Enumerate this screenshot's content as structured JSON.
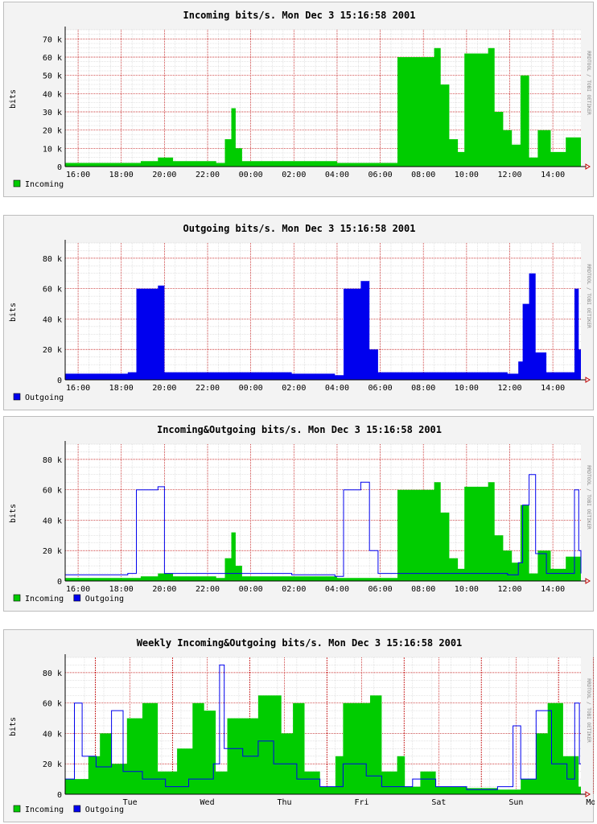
{
  "chart_data": [
    {
      "type": "area",
      "title": "Incoming bits/s. Mon Dec  3 15:16:58 2001",
      "ylabel": "bits",
      "ylim": [
        0,
        75000
      ],
      "yticks": [
        0,
        10000,
        20000,
        30000,
        40000,
        50000,
        60000,
        70000
      ],
      "ytick_labels": [
        "0",
        "10 k",
        "20 k",
        "30 k",
        "40 k",
        "50 k",
        "60 k",
        "70 k"
      ],
      "x_start": 15.4,
      "x_end": 15.3,
      "xtick_labels": [
        "16:00",
        "18:00",
        "20:00",
        "22:00",
        "00:00",
        "02:00",
        "04:00",
        "06:00",
        "08:00",
        "10:00",
        "12:00",
        "14:00"
      ],
      "credit": "RRDTOOL / TOBI OETIKER",
      "grid": true,
      "legend_position": "bottom-left",
      "series": [
        {
          "name": "Incoming",
          "color": "#00cc00",
          "style": "area",
          "points": [
            [
              0,
              2000
            ],
            [
              3.5,
              3000
            ],
            [
              4.3,
              5000
            ],
            [
              5,
              3000
            ],
            [
              7,
              2000
            ],
            [
              7.4,
              15000
            ],
            [
              7.7,
              32000
            ],
            [
              7.9,
              10000
            ],
            [
              8.2,
              3000
            ],
            [
              12.6,
              2000
            ],
            [
              14.9,
              2000
            ],
            [
              15.4,
              60000
            ],
            [
              17.1,
              65000
            ],
            [
              17.4,
              45000
            ],
            [
              17.8,
              15000
            ],
            [
              18.2,
              8000
            ],
            [
              18.5,
              62000
            ],
            [
              19.6,
              65000
            ],
            [
              19.9,
              30000
            ],
            [
              20.3,
              20000
            ],
            [
              20.7,
              12000
            ],
            [
              21.1,
              50000
            ],
            [
              21.5,
              5000
            ],
            [
              21.9,
              20000
            ],
            [
              22.5,
              8000
            ],
            [
              23.2,
              16000
            ],
            [
              23.9,
              5000
            ]
          ]
        }
      ]
    },
    {
      "type": "area",
      "title": "Outgoing bits/s. Mon Dec  3 15:16:58 2001",
      "ylabel": "bits",
      "ylim": [
        0,
        90000
      ],
      "yticks": [
        0,
        20000,
        40000,
        60000,
        80000
      ],
      "ytick_labels": [
        "0",
        "20 k",
        "40 k",
        "60 k",
        "80 k"
      ],
      "x_start": 15.4,
      "x_end": 15.3,
      "xtick_labels": [
        "16:00",
        "18:00",
        "20:00",
        "22:00",
        "00:00",
        "02:00",
        "04:00",
        "06:00",
        "08:00",
        "10:00",
        "12:00",
        "14:00"
      ],
      "credit": "RRDTOOL / TOBI OETIKER",
      "grid": true,
      "legend_position": "bottom-left",
      "series": [
        {
          "name": "Outgoing",
          "color": "#0000ee",
          "style": "area",
          "points": [
            [
              0,
              4000
            ],
            [
              2.9,
              5000
            ],
            [
              3.3,
              60000
            ],
            [
              4.3,
              62000
            ],
            [
              4.6,
              5000
            ],
            [
              7,
              5000
            ],
            [
              10.5,
              4000
            ],
            [
              12.5,
              3000
            ],
            [
              12.9,
              60000
            ],
            [
              13.7,
              65000
            ],
            [
              14.1,
              20000
            ],
            [
              14.5,
              5000
            ],
            [
              19.8,
              5000
            ],
            [
              20.5,
              4000
            ],
            [
              21,
              12000
            ],
            [
              21.2,
              50000
            ],
            [
              21.5,
              70000
            ],
            [
              21.8,
              18000
            ],
            [
              22.3,
              5000
            ],
            [
              23.4,
              5000
            ],
            [
              23.6,
              60000
            ],
            [
              23.8,
              20000
            ],
            [
              23.9,
              5000
            ]
          ]
        }
      ]
    },
    {
      "type": "area",
      "title": "Incoming&Outgoing bits/s. Mon Dec  3 15:16:58 2001",
      "ylabel": "bits",
      "ylim": [
        0,
        90000
      ],
      "yticks": [
        0,
        20000,
        40000,
        60000,
        80000
      ],
      "ytick_labels": [
        "0",
        "20 k",
        "40 k",
        "60 k",
        "80 k"
      ],
      "x_start": 15.4,
      "x_end": 15.3,
      "xtick_labels": [
        "16:00",
        "18:00",
        "20:00",
        "22:00",
        "00:00",
        "02:00",
        "04:00",
        "06:00",
        "08:00",
        "10:00",
        "12:00",
        "14:00"
      ],
      "credit": "RRDTOOL / TOBI OETIKER",
      "grid": true,
      "legend_position": "bottom-left",
      "series": [
        {
          "name": "Incoming",
          "color": "#00cc00",
          "style": "area",
          "points": [
            [
              0,
              2000
            ],
            [
              3.5,
              3000
            ],
            [
              4.3,
              5000
            ],
            [
              5,
              3000
            ],
            [
              7,
              2000
            ],
            [
              7.4,
              15000
            ],
            [
              7.7,
              32000
            ],
            [
              7.9,
              10000
            ],
            [
              8.2,
              3000
            ],
            [
              12.6,
              2000
            ],
            [
              14.9,
              2000
            ],
            [
              15.4,
              60000
            ],
            [
              17.1,
              65000
            ],
            [
              17.4,
              45000
            ],
            [
              17.8,
              15000
            ],
            [
              18.2,
              8000
            ],
            [
              18.5,
              62000
            ],
            [
              19.6,
              65000
            ],
            [
              19.9,
              30000
            ],
            [
              20.3,
              20000
            ],
            [
              20.7,
              12000
            ],
            [
              21.1,
              50000
            ],
            [
              21.5,
              5000
            ],
            [
              21.9,
              20000
            ],
            [
              22.5,
              8000
            ],
            [
              23.2,
              16000
            ],
            [
              23.9,
              5000
            ]
          ]
        },
        {
          "name": "Outgoing",
          "color": "#0000ee",
          "style": "line",
          "points": [
            [
              0,
              4000
            ],
            [
              2.9,
              5000
            ],
            [
              3.3,
              60000
            ],
            [
              4.3,
              62000
            ],
            [
              4.6,
              5000
            ],
            [
              7,
              5000
            ],
            [
              10.5,
              4000
            ],
            [
              12.5,
              3000
            ],
            [
              12.9,
              60000
            ],
            [
              13.7,
              65000
            ],
            [
              14.1,
              20000
            ],
            [
              14.5,
              5000
            ],
            [
              19.8,
              5000
            ],
            [
              20.5,
              4000
            ],
            [
              21,
              12000
            ],
            [
              21.2,
              50000
            ],
            [
              21.5,
              70000
            ],
            [
              21.8,
              18000
            ],
            [
              22.3,
              5000
            ],
            [
              23.4,
              5000
            ],
            [
              23.6,
              60000
            ],
            [
              23.8,
              20000
            ],
            [
              23.9,
              5000
            ]
          ]
        }
      ]
    },
    {
      "type": "area",
      "title": "Weekly Incoming&Outgoing bits/s. Mon Dec  3 15:16:58 2001",
      "ylabel": "bits",
      "ylim": [
        0,
        90000
      ],
      "yticks": [
        0,
        20000,
        40000,
        60000,
        80000
      ],
      "ytick_labels": [
        "0",
        "20 k",
        "40 k",
        "60 k",
        "80 k"
      ],
      "xtick_labels": [
        "Tue",
        "Wed",
        "Thu",
        "Fri",
        "Sat",
        "Sun",
        "Mon"
      ],
      "credit": "RRDTOOL / TOBI OETIKER",
      "grid": true,
      "legend_position": "bottom-left",
      "series": [
        {
          "name": "Incoming",
          "color": "#00cc00",
          "style": "area",
          "points": [
            [
              0,
              10000
            ],
            [
              0.3,
              25000
            ],
            [
              0.45,
              40000
            ],
            [
              0.6,
              20000
            ],
            [
              0.8,
              50000
            ],
            [
              1.0,
              60000
            ],
            [
              1.2,
              15000
            ],
            [
              1.45,
              30000
            ],
            [
              1.65,
              60000
            ],
            [
              1.8,
              55000
            ],
            [
              1.95,
              15000
            ],
            [
              2.1,
              50000
            ],
            [
              2.5,
              65000
            ],
            [
              2.8,
              40000
            ],
            [
              2.95,
              60000
            ],
            [
              3.1,
              15000
            ],
            [
              3.3,
              5000
            ],
            [
              3.5,
              25000
            ],
            [
              3.6,
              60000
            ],
            [
              3.95,
              65000
            ],
            [
              4.1,
              15000
            ],
            [
              4.3,
              25000
            ],
            [
              4.4,
              5000
            ],
            [
              4.6,
              15000
            ],
            [
              4.8,
              5000
            ],
            [
              5.2,
              4000
            ],
            [
              5.6,
              3000
            ],
            [
              5.9,
              10000
            ],
            [
              6.1,
              40000
            ],
            [
              6.25,
              60000
            ],
            [
              6.45,
              25000
            ],
            [
              6.65,
              5000
            ]
          ]
        },
        {
          "name": "Outgoing",
          "color": "#0000ee",
          "style": "line",
          "points": [
            [
              0,
              10000
            ],
            [
              0.12,
              60000
            ],
            [
              0.22,
              25000
            ],
            [
              0.4,
              18000
            ],
            [
              0.6,
              55000
            ],
            [
              0.75,
              15000
            ],
            [
              1.0,
              10000
            ],
            [
              1.3,
              5000
            ],
            [
              1.6,
              10000
            ],
            [
              1.92,
              20000
            ],
            [
              2.0,
              85000
            ],
            [
              2.06,
              30000
            ],
            [
              2.3,
              25000
            ],
            [
              2.5,
              35000
            ],
            [
              2.7,
              20000
            ],
            [
              3.0,
              10000
            ],
            [
              3.3,
              5000
            ],
            [
              3.6,
              20000
            ],
            [
              3.9,
              12000
            ],
            [
              4.1,
              5000
            ],
            [
              4.5,
              10000
            ],
            [
              4.8,
              5000
            ],
            [
              5.2,
              3000
            ],
            [
              5.6,
              5000
            ],
            [
              5.8,
              45000
            ],
            [
              5.9,
              10000
            ],
            [
              6.1,
              55000
            ],
            [
              6.3,
              20000
            ],
            [
              6.5,
              10000
            ],
            [
              6.6,
              60000
            ],
            [
              6.66,
              20000
            ]
          ]
        }
      ]
    }
  ]
}
